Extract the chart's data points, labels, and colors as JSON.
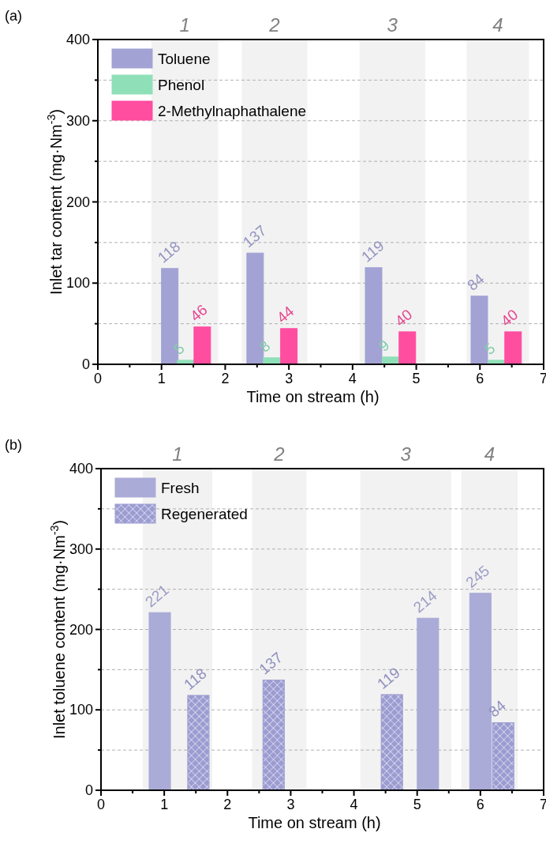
{
  "chart_data": [
    {
      "type": "bar",
      "annotations": [
        "(a)"
      ],
      "xlabel": "Time on stream (h)",
      "ylabel": "Inlet tar content (mg·Nm$^{-3}$)",
      "xlim": [
        0,
        7
      ],
      "ylim": [
        0,
        400
      ],
      "xticks": [
        0,
        {
          "value": 0.5,
          "label": null
        },
        1,
        {
          "value": 1.5,
          "label": null
        },
        2,
        {
          "value": 2.5,
          "label": null
        },
        3,
        {
          "value": 3.5,
          "label": null
        },
        4,
        {
          "value": 4.5,
          "label": null
        },
        5,
        {
          "value": 5.5,
          "label": null
        },
        6,
        {
          "value": 6.5,
          "label": null
        },
        7
      ],
      "yticks": [
        0,
        {
          "value": 50,
          "label": null
        },
        100,
        {
          "value": 150,
          "label": null
        },
        200,
        {
          "value": 250,
          "label": null
        },
        300,
        {
          "value": 350,
          "label": null
        },
        400
      ],
      "grid": "y",
      "legend": "top left",
      "data_labels": true,
      "bands": [
        {
          "axis": "x",
          "from": 0.84,
          "to": 1.89,
          "label": "1",
          "color": "#f2f2f2"
        },
        {
          "axis": "x",
          "from": 2.26,
          "to": 3.29,
          "label": "2",
          "color": "#f2f2f2"
        },
        {
          "axis": "x",
          "from": 4.11,
          "to": 5.14,
          "label": "3",
          "color": "#f2f2f2"
        },
        {
          "axis": "x",
          "from": 5.79,
          "to": 6.77,
          "label": "4",
          "color": "#f2f2f2"
        }
      ],
      "series": [
        {
          "name": "Toluene",
          "color": "#a2a2d4",
          "x": [
            1.13,
            2.47,
            4.33,
            5.99
          ],
          "values": [
            118,
            137,
            119,
            84
          ]
        },
        {
          "name": "Phenol",
          "color": "#8fe0b8",
          "x": [
            1.38,
            2.73,
            4.6,
            6.26
          ],
          "values": [
            5,
            8,
            9,
            5
          ]
        },
        {
          "name": "2-Methylnaphathalene",
          "color": "#ff4da0",
          "x": [
            1.64,
            3.0,
            4.86,
            6.52
          ],
          "values": [
            46,
            44,
            40,
            40
          ]
        }
      ]
    },
    {
      "type": "bar",
      "annotations": [
        "(b)"
      ],
      "xlabel": "Time on stream (h)",
      "ylabel": "Inlet toluene content (mg·Nm$^{-3}$)",
      "xlim": [
        0,
        7
      ],
      "ylim": [
        0,
        400
      ],
      "xticks": [
        0,
        {
          "value": 0.5,
          "label": null
        },
        1,
        {
          "value": 1.5,
          "label": null
        },
        2,
        {
          "value": 2.5,
          "label": null
        },
        3,
        {
          "value": 3.5,
          "label": null
        },
        4,
        {
          "value": 4.5,
          "label": null
        },
        5,
        {
          "value": 5.5,
          "label": null
        },
        6,
        {
          "value": 6.5,
          "label": null
        },
        7
      ],
      "yticks": [
        0,
        {
          "value": 50,
          "label": null
        },
        100,
        {
          "value": 150,
          "label": null
        },
        200,
        {
          "value": 250,
          "label": null
        },
        300,
        {
          "value": 350,
          "label": null
        },
        400
      ],
      "grid": "y",
      "legend": "top left",
      "data_labels": true,
      "bands": [
        {
          "axis": "x",
          "from": 0.66,
          "to": 1.76,
          "label": "1",
          "color": "#f2f2f2"
        },
        {
          "axis": "x",
          "from": 2.39,
          "to": 3.25,
          "label": "2",
          "color": "#f2f2f2"
        },
        {
          "axis": "x",
          "from": 4.1,
          "to": 5.54,
          "label": "3",
          "color": "#f2f2f2"
        },
        {
          "axis": "x",
          "from": 5.7,
          "to": 6.59,
          "label": "4",
          "color": "#f2f2f2"
        }
      ],
      "series": [
        {
          "name": "Fresh",
          "color": "#ababd8",
          "x": [
            0.93,
            5.17,
            6.0
          ],
          "values": [
            221,
            214,
            245
          ]
        },
        {
          "name": "Regenerated",
          "color": "#9c9cd2",
          "x": [
            1.54,
            2.73,
            4.6,
            6.36
          ],
          "values": [
            118,
            137,
            119,
            84
          ]
        }
      ]
    }
  ]
}
